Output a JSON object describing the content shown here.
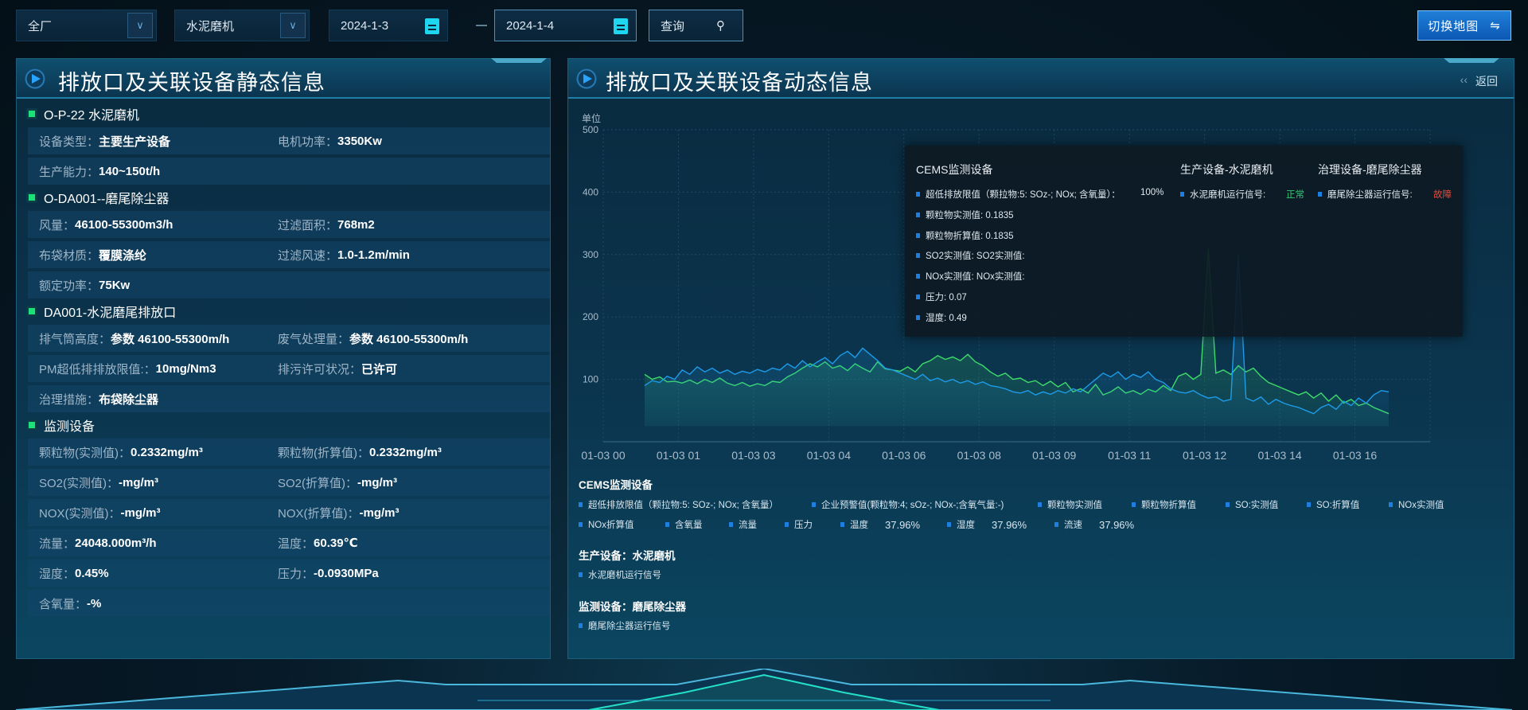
{
  "toolbar": {
    "factory_select": "全厂",
    "device_select": "水泥磨机",
    "start_date": "2024-1-3",
    "end_date": "2024-1-4",
    "query_label": "查询",
    "switch_map_label": "切换地图"
  },
  "left_panel": {
    "title": "排放口及关联设备静态信息",
    "sections": [
      {
        "title": "O-P-22 水泥磨机",
        "rows": [
          [
            {
              "label": "设备类型：",
              "value": "主要生产设备"
            },
            {
              "label": "电机功率：",
              "value": "3350Kw"
            }
          ],
          [
            {
              "label": "生产能力：",
              "value": "140~150t/h"
            }
          ]
        ]
      },
      {
        "title": "O-DA001--磨尾除尘器",
        "rows": [
          [
            {
              "label": "风量：",
              "value": "46100-55300m3/h"
            },
            {
              "label": "过滤面积：",
              "value": "768m2"
            }
          ],
          [
            {
              "label": "布袋材质：",
              "value": "覆膜涤纶"
            },
            {
              "label": "过滤风速：",
              "value": "1.0-1.2m/min"
            }
          ],
          [
            {
              "label": "额定功率：",
              "value": "75Kw"
            }
          ]
        ]
      },
      {
        "title": "DA001-水泥磨尾排放口",
        "rows": [
          [
            {
              "label": "排气筒高度：",
              "value": "参数 46100-55300m/h"
            },
            {
              "label": "废气处理量：",
              "value": "参数 46100-55300m/h"
            }
          ],
          [
            {
              "label": "PM超低排排放限值:：",
              "value": "10mg/Nm3"
            },
            {
              "label": "排污许可状况：",
              "value": "已许可"
            }
          ],
          [
            {
              "label": "治理措施：",
              "value": "布袋除尘器"
            }
          ]
        ]
      },
      {
        "title": "监测设备",
        "rows": [
          [
            {
              "label": "颗粒物(实测值)：",
              "value": "0.2332mg/m³"
            },
            {
              "label": "颗粒物(折算值)：",
              "value": "0.2332mg/m³"
            }
          ],
          [
            {
              "label": "SO2(实测值)：",
              "value": "-mg/m³"
            },
            {
              "label": "SO2(折算值)：",
              "value": "-mg/m³"
            }
          ],
          [
            {
              "label": "NOX(实测值)：",
              "value": "-mg/m³"
            },
            {
              "label": "NOX(折算值)：",
              "value": "-mg/m³"
            }
          ],
          [
            {
              "label": "流量：",
              "value": "24048.000m³/h"
            },
            {
              "label": "温度：",
              "value": "60.39℃"
            }
          ],
          [
            {
              "label": "湿度：",
              "value": "0.45%"
            },
            {
              "label": "压力：",
              "value": "-0.0930MPa"
            }
          ],
          [
            {
              "label": "含氧量：",
              "value": "-%"
            }
          ]
        ]
      }
    ]
  },
  "right_panel": {
    "title": "排放口及关联设备动态信息",
    "back_label": "返回"
  },
  "chart_data": {
    "type": "area",
    "ylabel": "单位",
    "ylim": [
      0,
      500
    ],
    "yticks": [
      "500",
      "400",
      "300",
      "200",
      "100"
    ],
    "xticks": [
      "01-03 00",
      "01-03 01",
      "01-03 03",
      "01-03 04",
      "01-03 06",
      "01-03 08",
      "01-03 09",
      "01-03 11",
      "01-03 12",
      "01-03 14",
      "01-03 16"
    ],
    "grid": true,
    "series": [
      {
        "color": "#3ddc6a",
        "values": [
          108,
          100,
          104,
          96,
          97,
          94,
          99,
          93,
          100,
          95,
          102,
          94,
          90,
          95,
          89,
          93,
          90,
          97,
          95,
          104,
          110,
          118,
          125,
          120,
          128,
          118,
          122,
          114,
          125,
          118,
          112,
          128,
          117,
          115,
          113,
          120,
          112,
          125,
          130,
          138,
          132,
          136,
          130,
          140,
          128,
          122,
          112,
          105,
          110,
          100,
          102,
          95,
          98,
          90,
          97,
          88,
          95,
          80,
          85,
          78,
          92,
          75,
          80,
          88,
          78,
          82,
          76,
          84,
          80,
          90,
          82,
          105,
          110,
          100,
          108,
          310,
          110,
          115,
          108,
          122,
          112,
          118,
          105,
          95,
          90,
          85,
          80,
          75,
          80,
          70,
          78,
          65,
          75,
          62,
          68,
          58,
          62,
          55,
          50,
          45
        ]
      },
      {
        "color": "#1e9be8",
        "values": [
          90,
          98,
          95,
          105,
          100,
          115,
          108,
          120,
          112,
          118,
          110,
          115,
          108,
          113,
          110,
          116,
          112,
          118,
          115,
          125,
          118,
          130,
          120,
          128,
          135,
          125,
          138,
          145,
          135,
          150,
          140,
          130,
          118,
          115,
          110,
          105,
          100,
          108,
          98,
          102,
          96,
          100,
          94,
          98,
          92,
          96,
          90,
          88,
          85,
          80,
          78,
          82,
          75,
          80,
          76,
          82,
          78,
          85,
          80,
          90,
          100,
          110,
          104,
          112,
          100,
          108,
          103,
          112,
          100,
          95,
          85,
          80,
          78,
          82,
          75,
          70,
          72,
          65,
          68,
          300,
          70,
          65,
          72,
          60,
          68,
          62,
          58,
          55,
          50,
          45,
          55,
          60,
          52,
          65,
          58,
          70,
          62,
          75,
          82,
          80
        ]
      }
    ]
  },
  "tooltip": {
    "col1_title": "CEMS监测设备",
    "col2_title": "生产设备-水泥磨机",
    "col3_title": "治理设备-磨尾除尘器",
    "col1_items": [
      "超低排放限值（颗拉物:5: SOz-; NOx; 含氧量）：",
      "颗粒物实测值: 0.1835",
      "颗粒物折算值: 0.1835",
      "SO2实测值: SO2实测值:",
      "NOx实测值: NOx实测值:",
      "压力: 0.07",
      "湿度: 0.49"
    ],
    "col1_first_value": "100%",
    "col2_item": "水泥磨机运行信号:",
    "col2_status": "正常",
    "col3_item": "磨尾除尘器运行信号:",
    "col3_status": "故障",
    "status_ok_color": "#2ecc71",
    "status_fault_color": "#e74c3c"
  },
  "legend": {
    "cems_title": "CEMS监测设备",
    "cems_items": [
      "超低排放限值（颗拉物:5: SOz-; NOx; 含氧量）",
      "企业预警值(颗粒物:4; sOz-; NOx-;含氧气量:-)",
      "颗粒物实测值",
      "颗粒物折算值",
      "SO:实测值",
      "SO:折算值",
      "NOx实测值",
      "NOx折算值",
      "含氧量",
      "流量",
      "压力",
      "温度",
      "湿度",
      "流速"
    ],
    "cems_values": {
      "温度": "37.96%",
      "湿度": "37.96%",
      "流速": "37.96%"
    },
    "production_title": "生产设备：水泥磨机",
    "production_items": [
      "水泥磨机运行信号"
    ],
    "monitor_title": "监测设备：磨尾除尘器",
    "monitor_items": [
      "磨尾除尘器运行信号"
    ]
  }
}
